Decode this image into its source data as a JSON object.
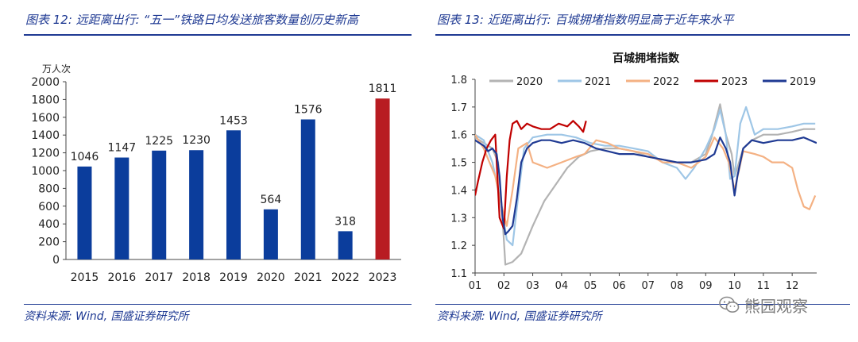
{
  "left_panel": {
    "title": "图表 12: 远距离出行: “五一”铁路日均发送旅客数量创历史新高",
    "source": "资料来源: Wind, 国盛证券研究所"
  },
  "right_panel": {
    "title": "图表 13: 近距离出行: 百城拥堵指数明显高于近年来水平",
    "source": "资料来源: Wind, 国盛证券研究所"
  },
  "watermark": {
    "text": "熊园观察",
    "icon": "wechat-icon"
  },
  "chart_data": [
    {
      "type": "bar",
      "title": "",
      "ylabel": "万人次",
      "categories": [
        "2015",
        "2016",
        "2017",
        "2018",
        "2019",
        "2020",
        "2021",
        "2022",
        "2023"
      ],
      "values": [
        1046,
        1147,
        1225,
        1230,
        1453,
        564,
        1576,
        318,
        1811
      ],
      "bar_colors": [
        "#0b3d9c",
        "#0b3d9c",
        "#0b3d9c",
        "#0b3d9c",
        "#0b3d9c",
        "#0b3d9c",
        "#0b3d9c",
        "#0b3d9c",
        "#b81c22"
      ],
      "yticks": [
        "0",
        "200",
        "400",
        "600",
        "800",
        "1000",
        "1200",
        "1400",
        "1600",
        "1800",
        "2000"
      ],
      "ylim": [
        0,
        2000
      ],
      "grid": false,
      "data_labels": true
    },
    {
      "type": "line",
      "title": "百城拥堵指数",
      "xlabel": "",
      "ylabel": "",
      "ylim": [
        1.1,
        1.8
      ],
      "xlim": [
        1,
        12.85
      ],
      "yticks": [
        "1.1",
        "1.2",
        "1.3",
        "1.4",
        "1.5",
        "1.6",
        "1.7",
        "1.8"
      ],
      "xticks": [
        "01",
        "02",
        "03",
        "04",
        "05",
        "06",
        "07",
        "08",
        "09",
        "10",
        "11",
        "12"
      ],
      "legend": "top",
      "grid": false,
      "series": [
        {
          "name": "2020",
          "color": "#b3b3b3",
          "x": [
            1,
            1.3,
            1.6,
            1.8,
            1.95,
            2.05,
            2.3,
            2.6,
            3,
            3.4,
            3.8,
            4.2,
            4.6,
            5,
            5.5,
            6,
            6.5,
            7,
            7.5,
            8,
            8.5,
            9,
            9.2,
            9.3,
            9.5,
            9.7,
            9.9,
            10.0,
            10.1,
            10.3,
            10.6,
            11,
            11.5,
            12,
            12.4,
            12.8
          ],
          "y": [
            1.59,
            1.57,
            1.55,
            1.5,
            1.3,
            1.13,
            1.14,
            1.17,
            1.27,
            1.36,
            1.42,
            1.48,
            1.52,
            1.54,
            1.55,
            1.55,
            1.54,
            1.52,
            1.51,
            1.5,
            1.5,
            1.53,
            1.59,
            1.63,
            1.71,
            1.6,
            1.53,
            1.45,
            1.48,
            1.55,
            1.58,
            1.6,
            1.6,
            1.61,
            1.62,
            1.62
          ]
        },
        {
          "name": "2021",
          "color": "#9ec6e6",
          "x": [
            1,
            1.3,
            1.6,
            1.9,
            2.1,
            2.3,
            2.5,
            2.7,
            3,
            3.5,
            4,
            4.5,
            5,
            5.5,
            6,
            6.5,
            7,
            7.5,
            8,
            8.3,
            8.6,
            9,
            9.3,
            9.5,
            9.7,
            9.85,
            10,
            10.2,
            10.4,
            10.7,
            11,
            11.5,
            12,
            12.4,
            12.8
          ],
          "y": [
            1.6,
            1.58,
            1.5,
            1.35,
            1.22,
            1.2,
            1.38,
            1.55,
            1.59,
            1.6,
            1.6,
            1.59,
            1.57,
            1.56,
            1.56,
            1.55,
            1.54,
            1.5,
            1.48,
            1.44,
            1.48,
            1.55,
            1.62,
            1.69,
            1.6,
            1.44,
            1.45,
            1.64,
            1.7,
            1.6,
            1.62,
            1.62,
            1.63,
            1.64,
            1.64
          ]
        },
        {
          "name": "2022",
          "color": "#f4b183",
          "x": [
            1,
            1.3,
            1.5,
            1.7,
            1.9,
            2.1,
            2.3,
            2.5,
            2.8,
            3,
            3.5,
            4,
            4.5,
            4.8,
            5.2,
            5.6,
            6,
            6.5,
            7,
            7.5,
            8,
            8.5,
            9,
            9.3,
            9.6,
            9.8,
            10,
            10.3,
            10.7,
            11,
            11.3,
            11.7,
            12,
            12.2,
            12.4,
            12.6,
            12.8
          ],
          "y": [
            1.6,
            1.55,
            1.5,
            1.45,
            1.35,
            1.27,
            1.4,
            1.55,
            1.57,
            1.5,
            1.48,
            1.5,
            1.52,
            1.53,
            1.58,
            1.57,
            1.55,
            1.54,
            1.53,
            1.5,
            1.5,
            1.48,
            1.52,
            1.59,
            1.55,
            1.5,
            1.4,
            1.54,
            1.53,
            1.52,
            1.5,
            1.5,
            1.48,
            1.4,
            1.34,
            1.33,
            1.38
          ]
        },
        {
          "name": "2023",
          "color": "#c00000",
          "x": [
            1,
            1.1,
            1.25,
            1.4,
            1.55,
            1.7,
            1.85,
            2.0,
            2.1,
            2.2,
            2.3,
            2.45,
            2.6,
            2.8,
            3,
            3.3,
            3.6,
            3.9,
            4.2,
            4.4,
            4.6,
            4.75,
            4.85
          ],
          "y": [
            1.38,
            1.43,
            1.5,
            1.55,
            1.58,
            1.6,
            1.3,
            1.26,
            1.45,
            1.58,
            1.64,
            1.65,
            1.62,
            1.64,
            1.63,
            1.62,
            1.62,
            1.64,
            1.63,
            1.65,
            1.63,
            1.61,
            1.65
          ]
        },
        {
          "name": "2019",
          "color": "#1f3a93",
          "x": [
            1,
            1.15,
            1.3,
            1.45,
            1.6,
            1.75,
            1.85,
            1.95,
            2.05,
            2.15,
            2.3,
            2.45,
            2.6,
            2.8,
            3,
            3.3,
            3.6,
            4,
            4.4,
            4.8,
            5.2,
            5.6,
            6,
            6.5,
            7,
            7.5,
            8,
            8.5,
            9,
            9.3,
            9.5,
            9.7,
            9.85,
            10,
            10.1,
            10.3,
            10.6,
            11,
            11.5,
            12,
            12.4,
            12.85
          ],
          "y": [
            1.58,
            1.57,
            1.56,
            1.54,
            1.55,
            1.53,
            1.45,
            1.3,
            1.24,
            1.25,
            1.27,
            1.37,
            1.5,
            1.55,
            1.57,
            1.58,
            1.58,
            1.57,
            1.58,
            1.57,
            1.55,
            1.54,
            1.53,
            1.53,
            1.52,
            1.51,
            1.5,
            1.5,
            1.51,
            1.53,
            1.59,
            1.55,
            1.5,
            1.38,
            1.45,
            1.55,
            1.58,
            1.57,
            1.58,
            1.58,
            1.59,
            1.57
          ]
        }
      ]
    }
  ]
}
